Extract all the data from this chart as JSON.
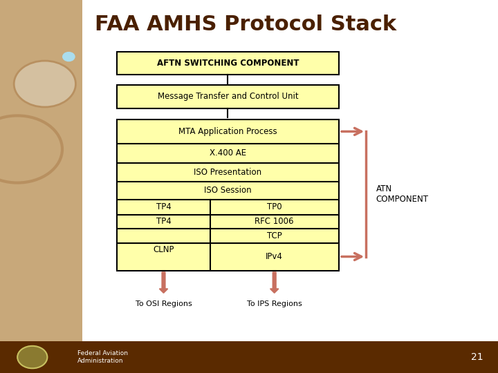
{
  "title": "FAA AMHS Protocol Stack",
  "title_color": "#4a2000",
  "title_fontsize": 22,
  "bg_color": "#ffffff",
  "left_panel_color": "#c8a87a",
  "bottom_bar_color": "#5a2a00",
  "bottom_bar_height": 0.085,
  "box_fill": "#ffffaa",
  "box_edge": "#000000",
  "box_edge_width": 1.5,
  "arrow_color": "#c87060",
  "footer_text_left": "Federal Aviation\nAdministration",
  "footer_number": "21",
  "footer_text_color": "#ffffff"
}
